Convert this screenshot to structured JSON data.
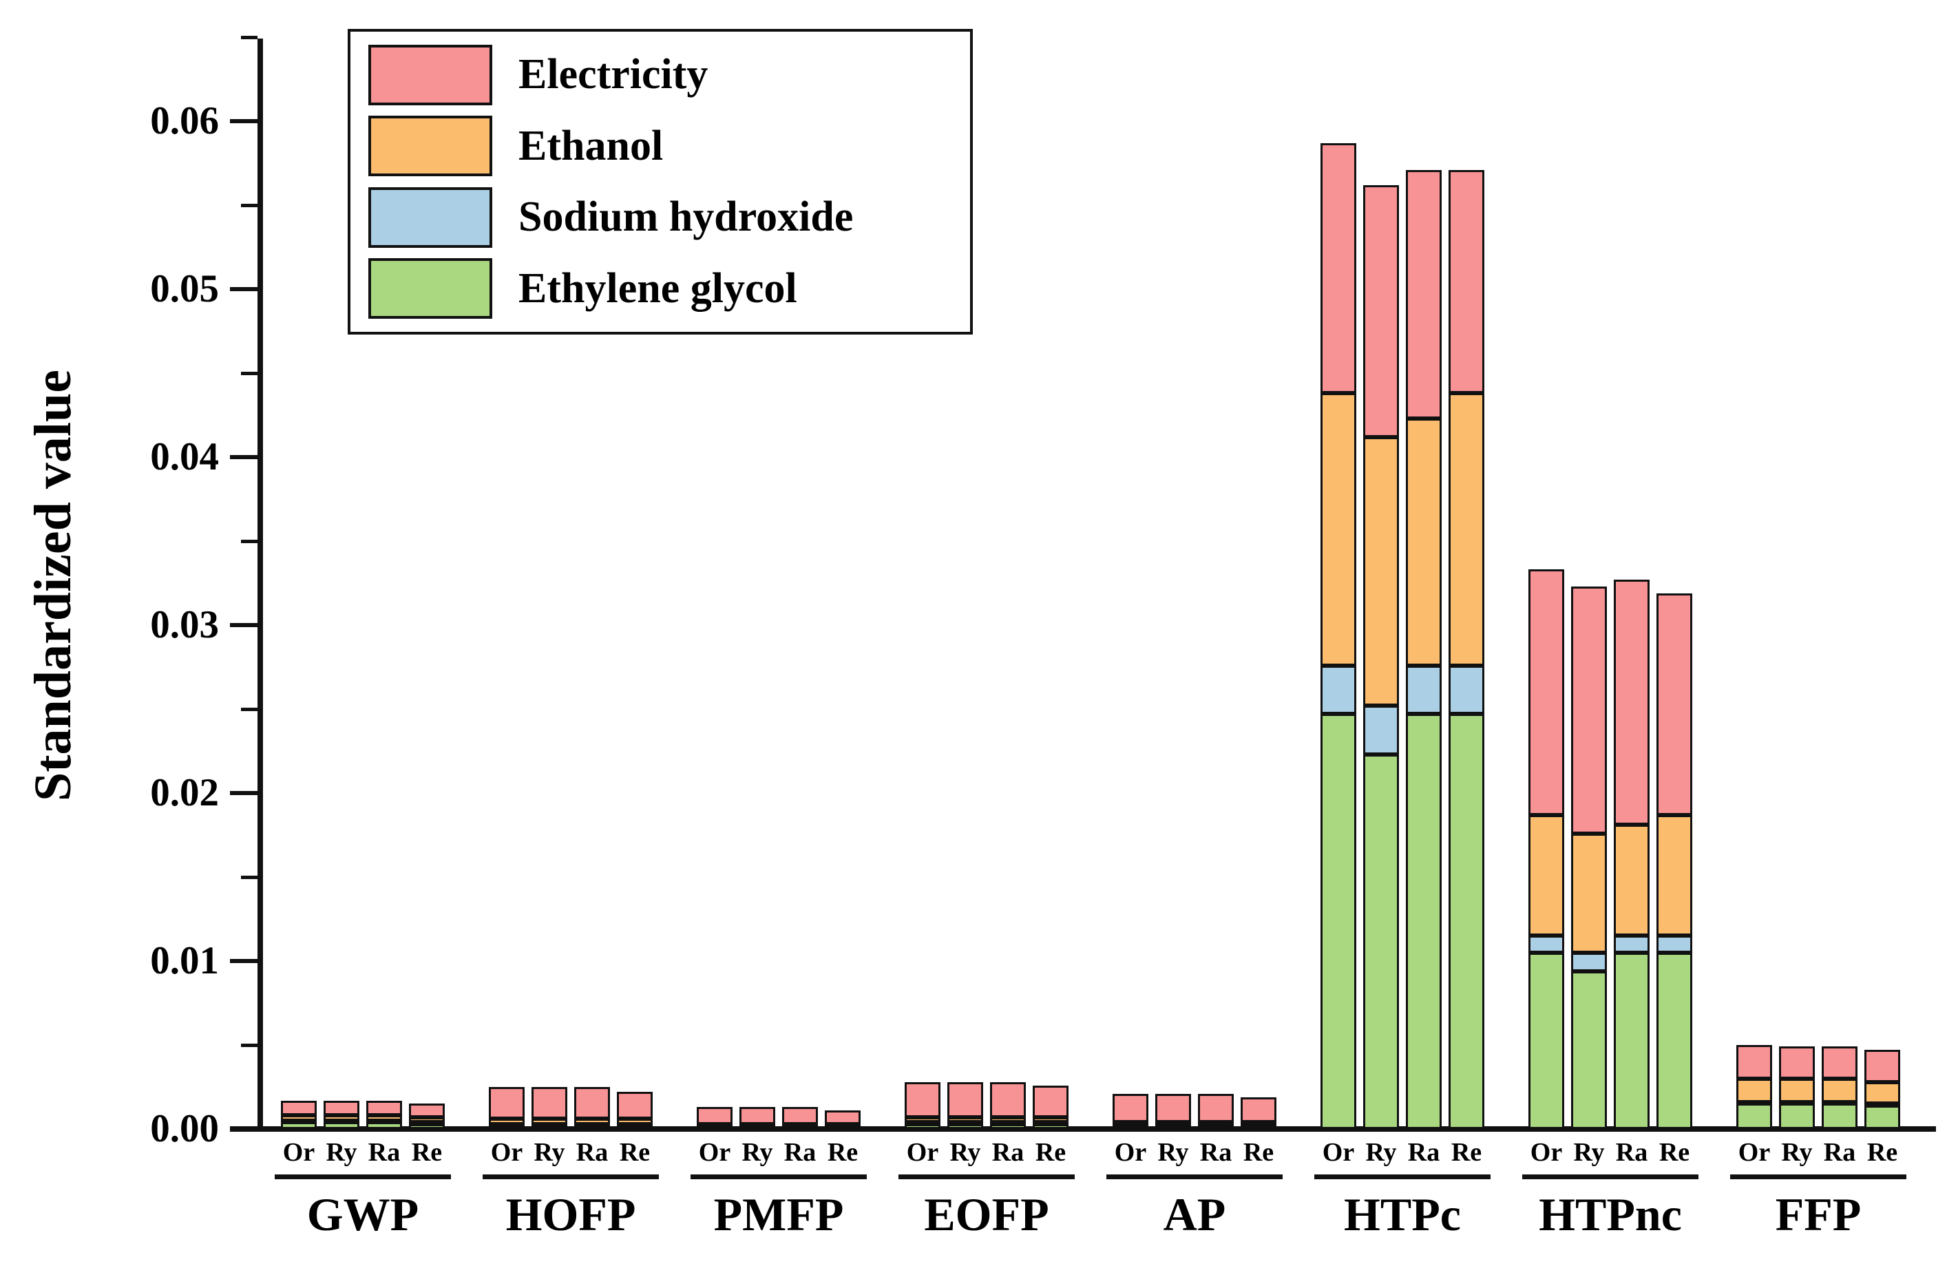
{
  "figure": {
    "background": "#ffffff",
    "axis_color": "#111111"
  },
  "chart_data": {
    "type": "bar",
    "stacked": true,
    "title": "",
    "xlabel": "",
    "ylabel": "Standardized value",
    "ylim": [
      0,
      0.065
    ],
    "grid": false,
    "yticks": [
      "0.00",
      "0.01",
      "0.02",
      "0.03",
      "0.04",
      "0.05",
      "0.06"
    ],
    "ytick_values": [
      0,
      0.01,
      0.02,
      0.03,
      0.04,
      0.05,
      0.06
    ],
    "minor_tick_values": [
      0.005,
      0.015,
      0.025,
      0.035,
      0.045,
      0.055,
      0.065
    ],
    "legend_position": "top-left",
    "legend": [
      {
        "label": "Electricity",
        "color": "#F79295"
      },
      {
        "label": "Ethanol",
        "color": "#FBBD6D"
      },
      {
        "label": "Sodium hydroxide",
        "color": "#ABCFE4"
      },
      {
        "label": "Ethylene glycol",
        "color": "#A9D880"
      }
    ],
    "categories": [
      "GWP",
      "HOFP",
      "PMFP",
      "EOFP",
      "AP",
      "HTPc",
      "HTPnc",
      "FFP"
    ],
    "sub_categories": [
      "Or",
      "Ry",
      "Ra",
      "Re"
    ],
    "series": [
      {
        "name": "Ethylene glycol",
        "color": "#A9D880",
        "values": [
          [
            0.0004,
            0.0004,
            0.0004,
            0.0003
          ],
          [
            0.0002,
            0.0002,
            0.0002,
            0.0002
          ],
          [
            0.0001,
            0.0001,
            0.0001,
            0.0001
          ],
          [
            0.0003,
            0.0003,
            0.0003,
            0.0003
          ],
          [
            0.0001,
            0.0001,
            0.0001,
            0.0001
          ],
          [
            0.0247,
            0.0223,
            0.0247,
            0.0247
          ],
          [
            0.0105,
            0.0094,
            0.0105,
            0.0105
          ],
          [
            0.0015,
            0.0015,
            0.0015,
            0.0014
          ]
        ]
      },
      {
        "name": "Sodium hydroxide",
        "color": "#ABCFE4",
        "values": [
          [
            0.0001,
            0.0001,
            0.0001,
            0.0001
          ],
          [
            0.0001,
            0.0001,
            0.0001,
            0.0001
          ],
          [
            0.0001,
            0.0001,
            0.0001,
            0.0001
          ],
          [
            0.0001,
            0.0001,
            0.0001,
            0.0001
          ],
          [
            0.0001,
            0.0001,
            0.0001,
            0.0001
          ],
          [
            0.0029,
            0.0029,
            0.0029,
            0.0029
          ],
          [
            0.001,
            0.0011,
            0.001,
            0.001
          ],
          [
            0.0001,
            0.0001,
            0.0001,
            0.0001
          ]
        ]
      },
      {
        "name": "Ethanol",
        "color": "#FBBD6D",
        "values": [
          [
            0.0003,
            0.0003,
            0.0003,
            0.0003
          ],
          [
            0.0003,
            0.0003,
            0.0003,
            0.0003
          ],
          [
            0.0001,
            0.0001,
            0.0001,
            0.0001
          ],
          [
            0.0003,
            0.0003,
            0.0003,
            0.0003
          ],
          [
            0.0002,
            0.0002,
            0.0002,
            0.0002
          ],
          [
            0.0162,
            0.016,
            0.0147,
            0.0162
          ],
          [
            0.0072,
            0.0071,
            0.0066,
            0.0072
          ],
          [
            0.0014,
            0.0014,
            0.0014,
            0.0013
          ]
        ]
      },
      {
        "name": "Electricity",
        "color": "#F79295",
        "values": [
          [
            0.0009,
            0.0009,
            0.0009,
            0.0008
          ],
          [
            0.0019,
            0.0019,
            0.0019,
            0.0016
          ],
          [
            0.001,
            0.001,
            0.001,
            0.0008
          ],
          [
            0.0021,
            0.0021,
            0.0021,
            0.0019
          ],
          [
            0.0017,
            0.0017,
            0.0017,
            0.0015
          ],
          [
            0.0149,
            0.015,
            0.0148,
            0.0133
          ],
          [
            0.0146,
            0.0147,
            0.0146,
            0.0132
          ],
          [
            0.002,
            0.0019,
            0.0019,
            0.0019
          ]
        ]
      }
    ]
  }
}
